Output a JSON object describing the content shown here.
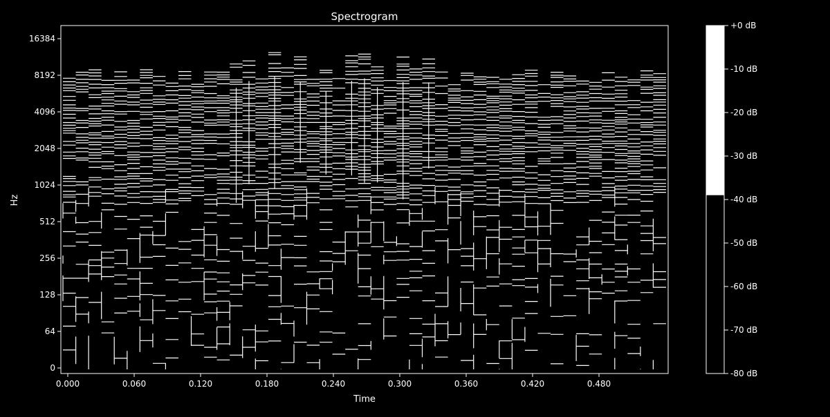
{
  "chart_data": {
    "type": "heatmap",
    "title": "Spectrogram",
    "xlabel": "Time",
    "ylabel": "Hz",
    "x_axis": {
      "scale": "linear",
      "range": [
        0,
        0.58
      ],
      "ticks": [
        0,
        0.06,
        0.12,
        0.18,
        0.24,
        0.3,
        0.36,
        0.42,
        0.48
      ],
      "tick_labels": [
        "0.000",
        "0.060",
        "0.120",
        "0.180",
        "0.240",
        "0.300",
        "0.360",
        "0.420",
        "0.480"
      ]
    },
    "y_axis": {
      "scale": "symlog",
      "linthresh": 64,
      "range": [
        0,
        22050
      ],
      "ticks": [
        0,
        64,
        128,
        256,
        512,
        1024,
        2048,
        4096,
        8192,
        16384
      ],
      "tick_labels": [
        "0",
        "64",
        "128",
        "256",
        "512",
        "1024",
        "2048",
        "4096",
        "8192",
        "16384"
      ]
    },
    "colorbar": {
      "range_db": [
        -80,
        0
      ],
      "ticks": [
        0,
        -10,
        -20,
        -30,
        -40,
        -50,
        -60,
        -70,
        -80
      ],
      "tick_labels": [
        "+0 dB",
        "-10 dB",
        "-20 dB",
        "-30 dB",
        "-40 dB",
        "-50 dB",
        "-60 dB",
        "-70 dB",
        "-80 dB"
      ],
      "threshold_db": -39
    },
    "grid": false,
    "colors": {
      "background": "#000000",
      "foreground": "#ffffff"
    }
  }
}
